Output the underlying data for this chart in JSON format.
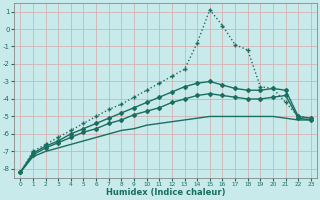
{
  "xlabel": "Humidex (Indice chaleur)",
  "background_color": "#c8eaea",
  "grid_color": "#d4a8a8",
  "line_color": "#1a6e60",
  "xlim": [
    -0.5,
    23.5
  ],
  "ylim": [
    -8.5,
    1.5
  ],
  "yticks": [
    1,
    0,
    -1,
    -2,
    -3,
    -4,
    -5,
    -6,
    -7,
    -8
  ],
  "xticks": [
    0,
    1,
    2,
    3,
    4,
    5,
    6,
    7,
    8,
    9,
    10,
    11,
    12,
    13,
    14,
    15,
    16,
    17,
    18,
    19,
    20,
    21,
    22,
    23
  ],
  "series": [
    {
      "x": [
        0,
        1,
        2,
        3,
        4,
        5,
        6,
        7,
        8,
        9,
        10,
        11,
        12,
        13,
        14,
        15,
        16,
        17,
        18,
        19,
        20,
        21,
        22,
        23
      ],
      "y": [
        -8.2,
        -7.3,
        -7.0,
        -6.8,
        -6.6,
        -6.4,
        -6.2,
        -6.0,
        -5.8,
        -5.7,
        -5.5,
        -5.4,
        -5.3,
        -5.2,
        -5.1,
        -5.0,
        -5.0,
        -5.0,
        -5.0,
        -5.0,
        -5.0,
        -5.1,
        -5.2,
        -5.2
      ],
      "style": "solid",
      "marker": null,
      "markersize": 0,
      "linewidth": 1.0
    },
    {
      "x": [
        0,
        1,
        2,
        3,
        4,
        5,
        6,
        7,
        8,
        9,
        10,
        11,
        12,
        13,
        14,
        15,
        16,
        17,
        18,
        19,
        20,
        21,
        22,
        23
      ],
      "y": [
        -8.2,
        -7.2,
        -6.8,
        -6.5,
        -6.2,
        -5.9,
        -5.7,
        -5.4,
        -5.2,
        -4.9,
        -4.7,
        -4.5,
        -4.2,
        -4.0,
        -3.8,
        -3.7,
        -3.8,
        -3.9,
        -4.0,
        -4.0,
        -3.9,
        -3.8,
        -5.1,
        -5.2
      ],
      "style": "solid",
      "marker": "D",
      "markersize": 2.0,
      "linewidth": 1.0
    },
    {
      "x": [
        0,
        1,
        2,
        3,
        4,
        5,
        6,
        7,
        8,
        9,
        10,
        11,
        12,
        13,
        14,
        15,
        16,
        17,
        18,
        19,
        20,
        21,
        22,
        23
      ],
      "y": [
        -8.2,
        -7.1,
        -6.7,
        -6.4,
        -6.0,
        -5.7,
        -5.4,
        -5.1,
        -4.8,
        -4.5,
        -4.2,
        -3.9,
        -3.6,
        -3.3,
        -3.1,
        -3.0,
        -3.2,
        -3.4,
        -3.5,
        -3.5,
        -3.4,
        -3.5,
        -5.0,
        -5.1
      ],
      "style": "solid",
      "marker": "D",
      "markersize": 2.0,
      "linewidth": 1.0
    },
    {
      "x": [
        0,
        1,
        2,
        3,
        4,
        5,
        6,
        7,
        8,
        9,
        10,
        11,
        12,
        13,
        14,
        15,
        16,
        17,
        18,
        19,
        20,
        21,
        22,
        23
      ],
      "y": [
        -8.2,
        -7.0,
        -6.6,
        -6.2,
        -5.8,
        -5.4,
        -5.0,
        -4.6,
        -4.3,
        -3.9,
        -3.5,
        -3.1,
        -2.7,
        -2.3,
        -0.8,
        1.1,
        0.2,
        -0.9,
        -1.2,
        -3.3,
        -3.4,
        -4.2,
        -5.0,
        -5.1
      ],
      "style": "dotted",
      "marker": "+",
      "markersize": 3.5,
      "linewidth": 1.0
    }
  ]
}
